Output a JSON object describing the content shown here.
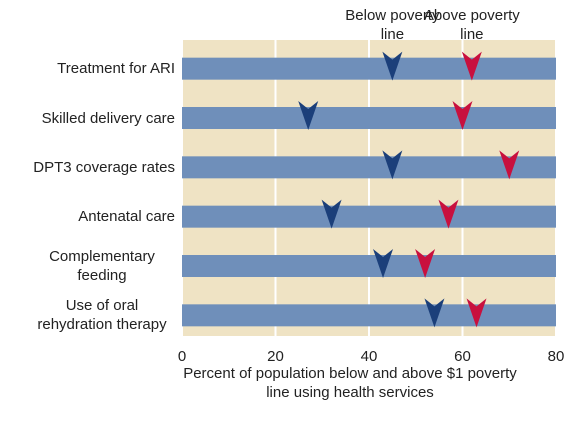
{
  "chart_data": {
    "type": "arrow-dot",
    "categories": [
      "Treatment for ARI",
      "Skilled delivery care",
      "DPT3 coverage rates",
      "Antenatal care",
      "Complementary feeding",
      "Use of oral rehydration therapy"
    ],
    "series": [
      {
        "name": "Below poverty line",
        "color": "#1b3f7a",
        "values": [
          45,
          27,
          45,
          32,
          43,
          54
        ]
      },
      {
        "name": "Above poverty line",
        "color": "#c8103e",
        "values": [
          62,
          60,
          70,
          57,
          52,
          63
        ]
      }
    ],
    "xlim": [
      0,
      80
    ],
    "xticks": [
      0,
      20,
      40,
      60,
      80
    ],
    "xlabel": "Percent of population below and above $1 poverty line using health services",
    "grid": true
  }
}
